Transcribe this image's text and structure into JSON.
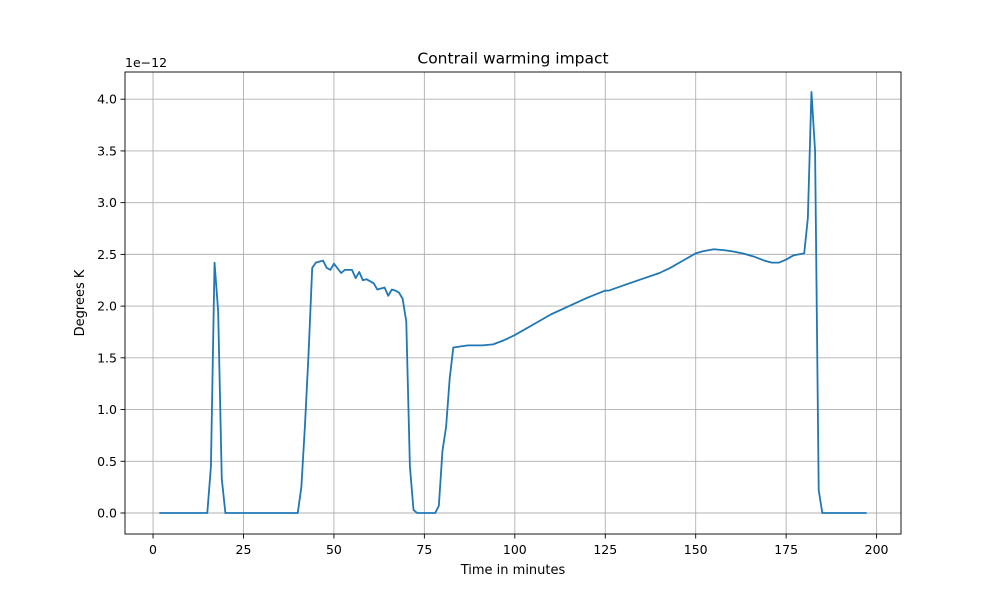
{
  "chart_data": {
    "type": "line",
    "title": "Contrail warming impact",
    "xlabel": "Time in minutes",
    "ylabel": "Degrees K",
    "y_offset_label": "1e−12",
    "xlim": [
      -7.75,
      206.75
    ],
    "ylim": [
      -0.203,
      4.263
    ],
    "x_ticks": [
      0,
      25,
      50,
      75,
      100,
      125,
      150,
      175,
      200
    ],
    "x_tick_labels": [
      "0",
      "25",
      "50",
      "75",
      "100",
      "125",
      "150",
      "175",
      "200"
    ],
    "y_ticks": [
      0.0,
      0.5,
      1.0,
      1.5,
      2.0,
      2.5,
      3.0,
      3.5,
      4.0
    ],
    "y_tick_labels": [
      "0.0",
      "0.5",
      "1.0",
      "1.5",
      "2.0",
      "2.5",
      "3.0",
      "3.5",
      "4.0"
    ],
    "y_scale_multiplier": 1e-12,
    "grid": true,
    "legend": "none",
    "series": [
      {
        "color": "#1f77b4",
        "x": [
          2,
          5,
          10,
          15,
          16,
          17,
          18,
          19,
          20,
          25,
          30,
          35,
          40,
          41,
          42,
          43,
          44,
          45,
          47,
          48,
          49,
          50,
          52,
          53,
          55,
          56,
          57,
          58,
          59,
          61,
          62,
          64,
          65,
          66,
          67,
          68,
          69,
          70,
          71,
          72,
          73,
          75,
          78,
          79,
          80,
          81,
          82,
          83,
          87,
          91,
          94,
          97,
          100,
          105,
          110,
          115,
          120,
          125,
          126,
          130,
          135,
          140,
          143,
          146,
          150,
          152,
          155,
          158,
          160,
          163,
          166,
          169,
          171,
          173,
          175,
          177,
          180,
          181,
          182,
          183,
          184,
          185,
          190,
          197
        ],
        "values": [
          0,
          0,
          0,
          0,
          0.45,
          2.42,
          1.95,
          0.33,
          0,
          0,
          0,
          0,
          0,
          0.25,
          0.85,
          1.55,
          2.37,
          2.42,
          2.44,
          2.37,
          2.35,
          2.41,
          2.32,
          2.35,
          2.35,
          2.27,
          2.33,
          2.25,
          2.26,
          2.22,
          2.16,
          2.18,
          2.1,
          2.16,
          2.15,
          2.13,
          2.07,
          1.85,
          0.45,
          0.03,
          0,
          0,
          0,
          0.07,
          0.6,
          0.83,
          1.3,
          1.6,
          1.62,
          1.62,
          1.63,
          1.67,
          1.72,
          1.82,
          1.92,
          2.0,
          2.08,
          2.15,
          2.15,
          2.2,
          2.26,
          2.32,
          2.37,
          2.43,
          2.51,
          2.53,
          2.55,
          2.54,
          2.53,
          2.51,
          2.48,
          2.44,
          2.42,
          2.42,
          2.45,
          2.49,
          2.51,
          2.85,
          4.07,
          3.5,
          0.22,
          0,
          0,
          0
        ]
      }
    ]
  }
}
